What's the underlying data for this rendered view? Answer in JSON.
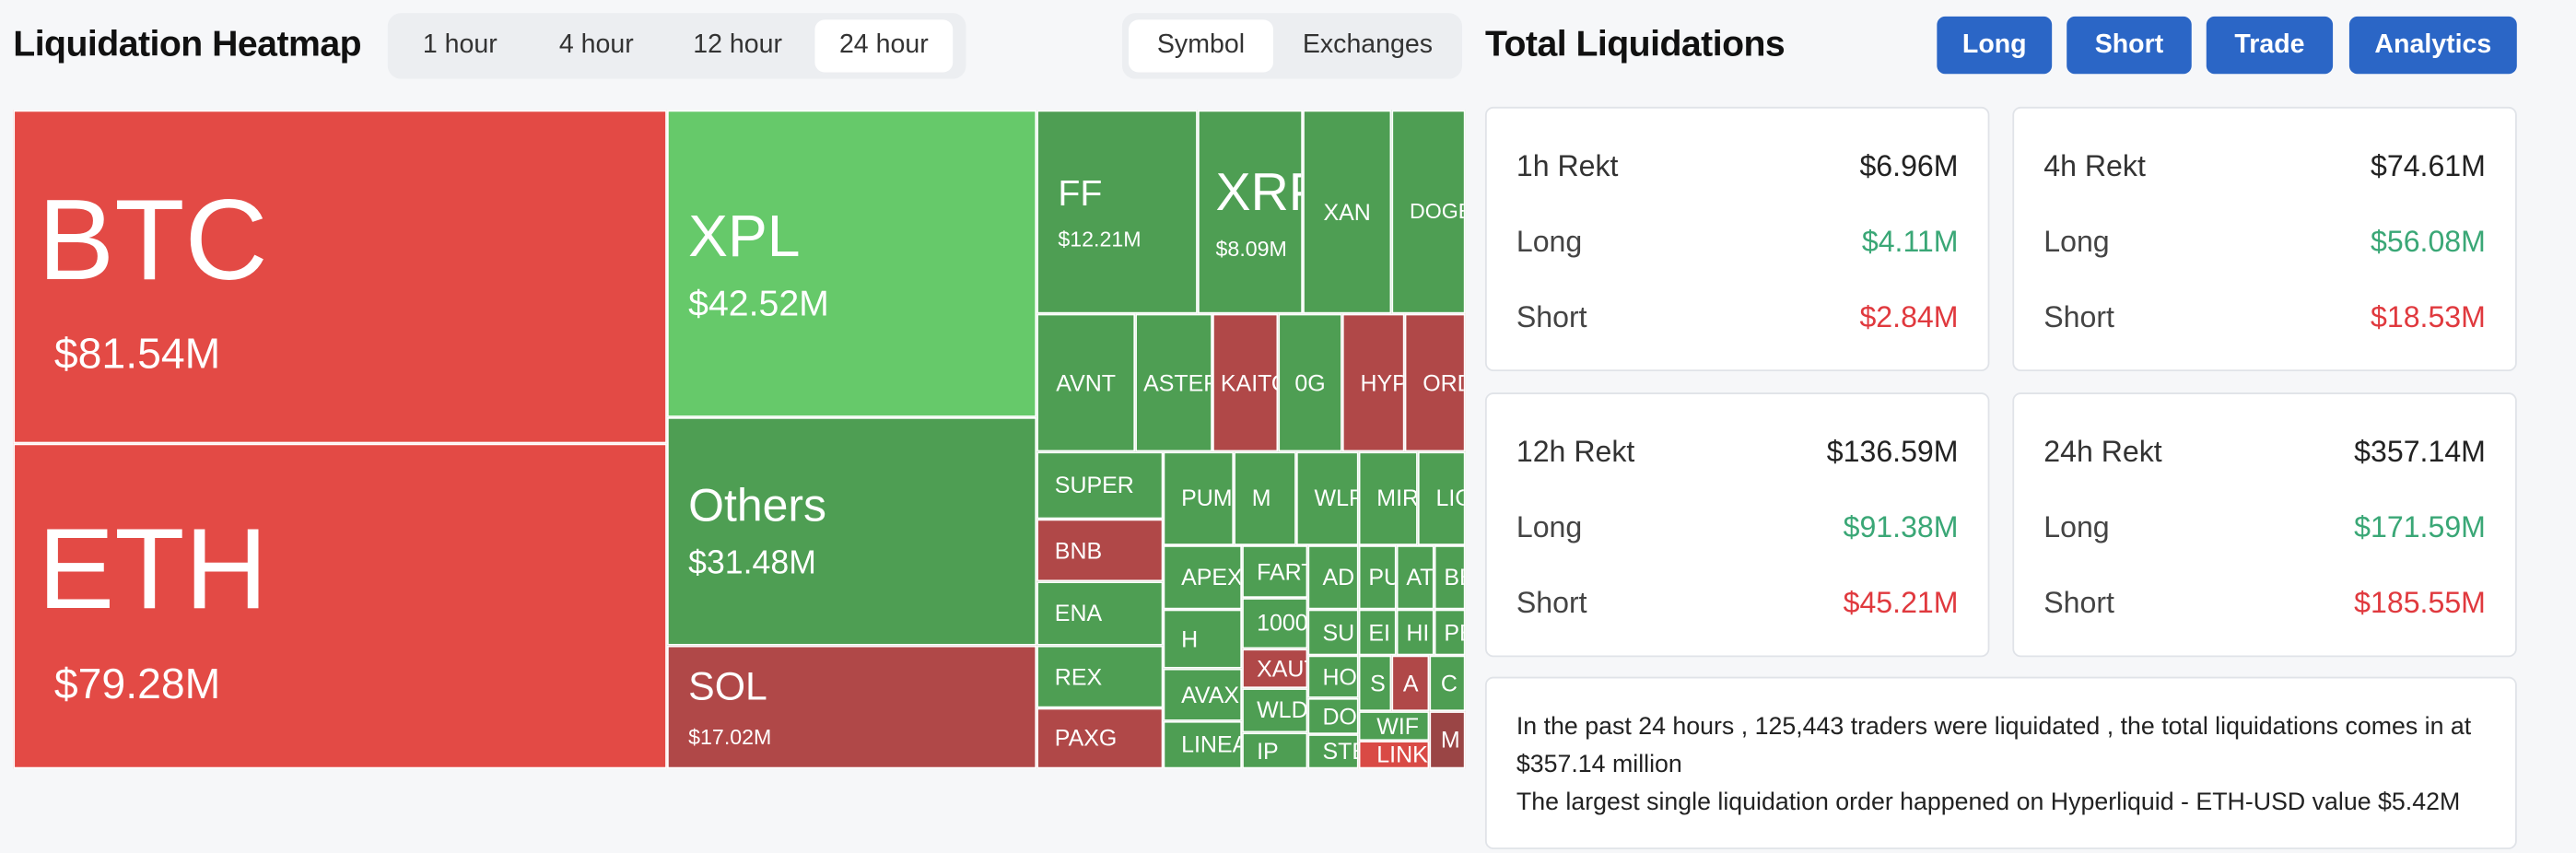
{
  "header": {
    "title": "Liquidation Heatmap",
    "tabs": [
      "1 hour",
      "4 hour",
      "12 hour",
      "24 hour"
    ],
    "views": [
      "Symbol",
      "Exchanges"
    ]
  },
  "heatmap": {
    "tiles": [
      {
        "label": "BTC",
        "value": "$81.54M"
      },
      {
        "label": "ETH",
        "value": "$79.28M"
      },
      {
        "label": "XPL",
        "value": "$42.52M"
      },
      {
        "label": "Others",
        "value": "$31.48M"
      },
      {
        "label": "SOL",
        "value": "$17.02M"
      },
      {
        "label": "FF",
        "value": "$12.21M"
      },
      {
        "label": "XRP",
        "value": "$8.09M"
      },
      {
        "label": "XAN"
      },
      {
        "label": "DOGE"
      },
      {
        "label": "AVNT"
      },
      {
        "label": "ASTER"
      },
      {
        "label": "KAITO"
      },
      {
        "label": "0G"
      },
      {
        "label": "HYPE"
      },
      {
        "label": "ORDI"
      },
      {
        "label": "SUPER"
      },
      {
        "label": "BNB"
      },
      {
        "label": "ENA"
      },
      {
        "label": "REX"
      },
      {
        "label": "PAXG"
      },
      {
        "label": "PUMP"
      },
      {
        "label": "M"
      },
      {
        "label": "WLFI"
      },
      {
        "label": "MIRA"
      },
      {
        "label": "LIGHT"
      },
      {
        "label": "APEX"
      },
      {
        "label": "FARTCOIN"
      },
      {
        "label": "AD"
      },
      {
        "label": "PU"
      },
      {
        "label": "AT"
      },
      {
        "label": "BE"
      },
      {
        "label": "H"
      },
      {
        "label": "1000"
      },
      {
        "label": "SU"
      },
      {
        "label": "EI"
      },
      {
        "label": "HI"
      },
      {
        "label": "PE"
      },
      {
        "label": "AVAX"
      },
      {
        "label": "XAUT"
      },
      {
        "label": "HOLO"
      },
      {
        "label": "S"
      },
      {
        "label": "A"
      },
      {
        "label": "C"
      },
      {
        "label": "LINEA"
      },
      {
        "label": "WLD"
      },
      {
        "label": "DOT"
      },
      {
        "label": "WIF"
      },
      {
        "label": "M"
      },
      {
        "label": "IP"
      },
      {
        "label": "STE"
      },
      {
        "label": "LINK"
      }
    ]
  },
  "summary": {
    "title": "Total Liquidations",
    "buttons": [
      "Long",
      "Short",
      "Trade",
      "Analytics"
    ],
    "cards": [
      {
        "title": "1h Rekt",
        "total": "$6.96M",
        "rows": [
          {
            "label": "Long",
            "value": "$4.11M"
          },
          {
            "label": "Short",
            "value": "$2.84M"
          }
        ]
      },
      {
        "title": "4h Rekt",
        "total": "$74.61M",
        "rows": [
          {
            "label": "Long",
            "value": "$56.08M"
          },
          {
            "label": "Short",
            "value": "$18.53M"
          }
        ]
      },
      {
        "title": "12h Rekt",
        "total": "$136.59M",
        "rows": [
          {
            "label": "Long",
            "value": "$91.38M"
          },
          {
            "label": "Short",
            "value": "$45.21M"
          }
        ]
      },
      {
        "title": "24h Rekt",
        "total": "$357.14M",
        "rows": [
          {
            "label": "Long",
            "value": "$171.59M"
          },
          {
            "label": "Short",
            "value": "$185.55M"
          }
        ]
      }
    ],
    "note": [
      "In the past 24 hours , 125,443 traders were liquidated , the total liquidations comes in at $357.14 million",
      "The largest single liquidation order happened on Hyperliquid - ETH-USD value $5.42M"
    ]
  }
}
